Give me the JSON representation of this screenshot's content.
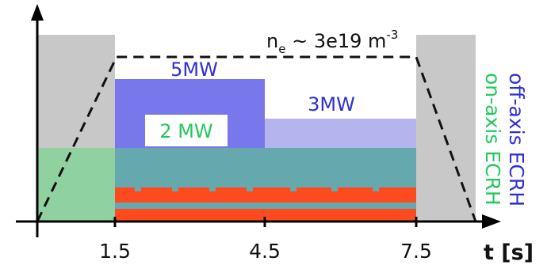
{
  "density": {
    "prefix": "n",
    "sub": "e",
    "mid": " ~ 3e19 m",
    "sup": "-3"
  },
  "power_labels": {
    "off_axis_peak": "5MW",
    "off_axis_low": "3MW",
    "on_axis": "2 MW"
  },
  "legend": {
    "off_axis": "off-axis ECRH",
    "on_axis": "on-axis ECRH"
  },
  "time_axis": {
    "label": "t [s]",
    "ticks": [
      "1.5",
      "4.5",
      "7.5"
    ]
  },
  "colors": {
    "gray": "#c8c8c8",
    "on_axis_green": "#8fd2a0",
    "off_axis_blue": "#7878ec",
    "off_axis_light": "#b4b4ef",
    "overlap": "#65a8ae",
    "red": "#ff4a1f",
    "on_axis_text": "#22c95c",
    "off_axis_text": "#2f2fd6"
  }
}
